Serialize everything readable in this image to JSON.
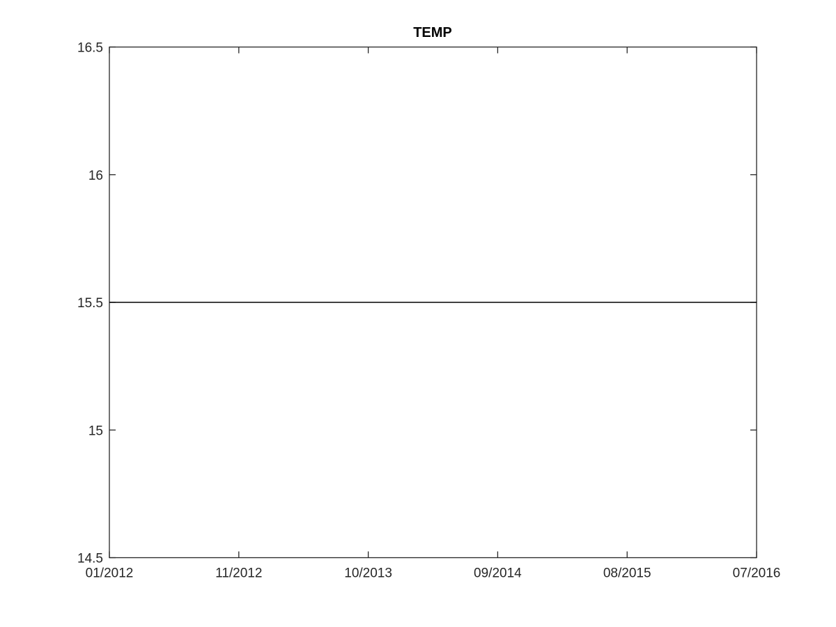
{
  "chart_data": {
    "type": "line",
    "title": "TEMP",
    "xlabel": "",
    "ylabel": "",
    "x_ticks": [
      "01/2012",
      "11/2012",
      "10/2013",
      "09/2014",
      "08/2015",
      "07/2016"
    ],
    "xlim": [
      "01/2012",
      "07/2016"
    ],
    "ylim": [
      14.5,
      16.5
    ],
    "y_ticks": [
      "14.5",
      "15",
      "15.5",
      "16",
      "16.5"
    ],
    "y_tick_values": [
      14.5,
      15,
      15.5,
      16,
      16.5
    ],
    "grid": false,
    "series": [
      {
        "x": [
          "01/2012",
          "07/2016"
        ],
        "values": [
          15.5,
          15.5
        ],
        "color": "#000000"
      }
    ]
  }
}
